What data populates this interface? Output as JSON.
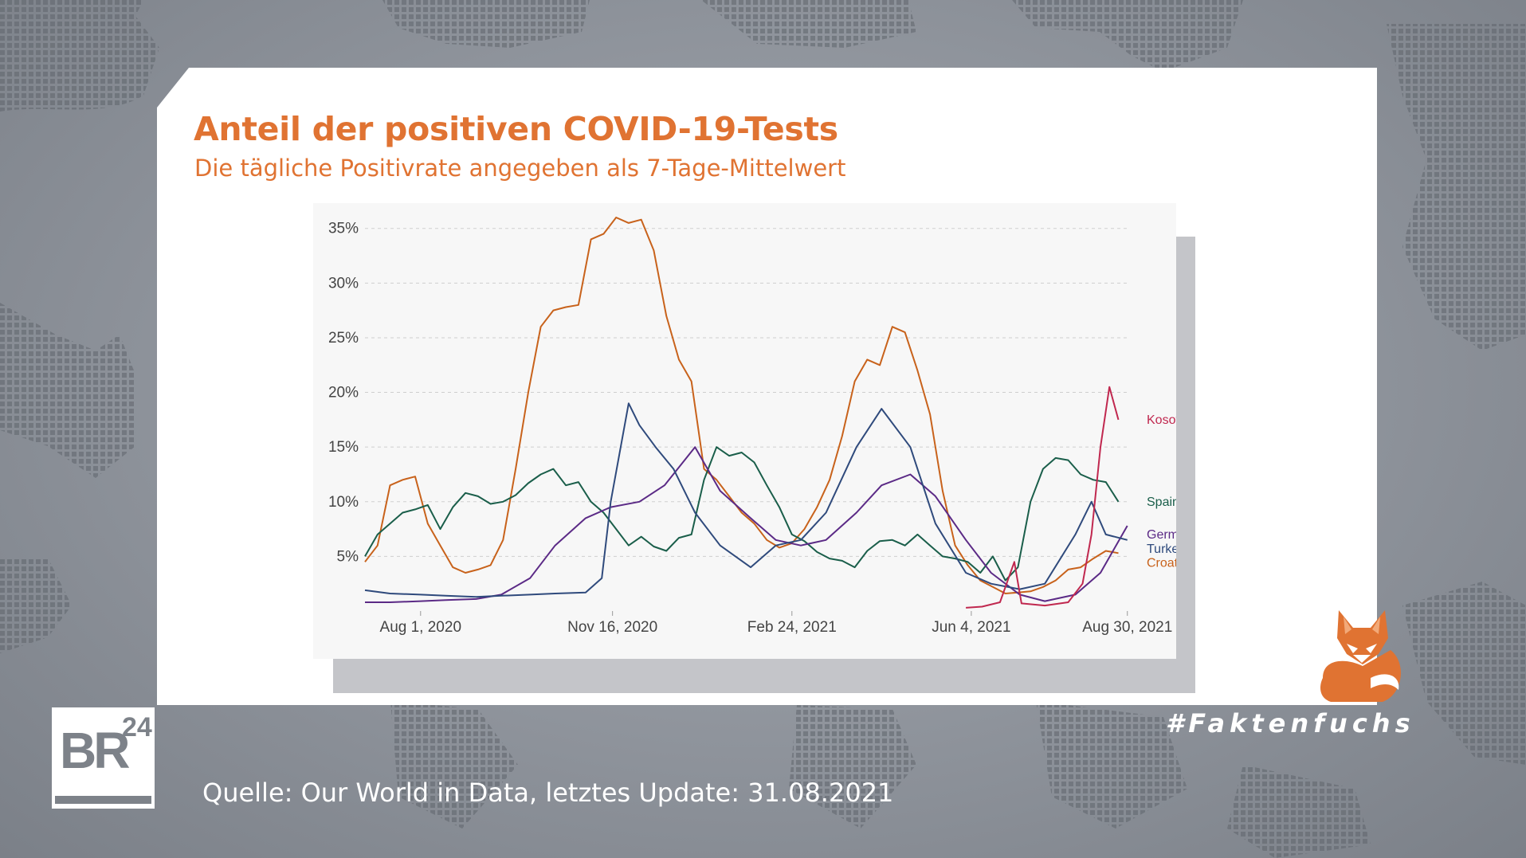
{
  "header": {
    "title": "Anteil der positiven COVID-19-Tests",
    "subtitle": "Die tägliche Positivrate angegeben als 7-Tage-Mittelwert"
  },
  "footer": {
    "source": "Quelle: Our World in Data, letztes Update: 31.08.2021",
    "hashtag": "#Faktenfuchs",
    "logo_text": "BR",
    "logo_sup": "24"
  },
  "colors": {
    "accent": "#e07332",
    "Kosovo": "#c0284f",
    "Spain": "#1a5e4a",
    "Germany": "#5b2a86",
    "Turkey": "#2f4a7c",
    "Croatia": "#c8621b"
  },
  "chart_data": {
    "type": "line",
    "y_ticks": [
      "35%",
      "30%",
      "25%",
      "20%",
      "15%",
      "10%",
      "5%"
    ],
    "y_tick_values": [
      35,
      30,
      25,
      20,
      15,
      10,
      5
    ],
    "x_ticks": [
      "Aug 1, 2020",
      "Nov 16, 2020",
      "Feb 24, 2021",
      "Jun 4, 2021",
      "Aug 30, 2021"
    ],
    "x_tick_values": [
      "2020-08-01",
      "2020-11-16",
      "2021-02-24",
      "2021-06-04",
      "2021-08-30"
    ],
    "xlim": [
      "2020-07-01",
      "2021-08-31"
    ],
    "ylim": [
      0,
      36
    ],
    "grid": "horizontal dashed",
    "legend": "right, inline labels at line ends",
    "series": [
      {
        "name": "Croatia",
        "color": "#c8621b",
        "points": [
          [
            "2020-07-01",
            4.5
          ],
          [
            "2020-07-08",
            6
          ],
          [
            "2020-07-15",
            11.5
          ],
          [
            "2020-07-22",
            12
          ],
          [
            "2020-07-29",
            12.3
          ],
          [
            "2020-08-05",
            8
          ],
          [
            "2020-08-12",
            6
          ],
          [
            "2020-08-19",
            4
          ],
          [
            "2020-08-26",
            3.5
          ],
          [
            "2020-09-02",
            3.8
          ],
          [
            "2020-09-09",
            4.2
          ],
          [
            "2020-09-16",
            6.5
          ],
          [
            "2020-09-23",
            13
          ],
          [
            "2020-09-30",
            20
          ],
          [
            "2020-10-07",
            26
          ],
          [
            "2020-10-14",
            27.5
          ],
          [
            "2020-10-21",
            27.8
          ],
          [
            "2020-10-28",
            28
          ],
          [
            "2020-11-04",
            34
          ],
          [
            "2020-11-11",
            34.5
          ],
          [
            "2020-11-18",
            36
          ],
          [
            "2020-11-25",
            35.5
          ],
          [
            "2020-12-02",
            35.8
          ],
          [
            "2020-12-09",
            33
          ],
          [
            "2020-12-16",
            27
          ],
          [
            "2020-12-23",
            23
          ],
          [
            "2020-12-30",
            21
          ],
          [
            "2021-01-06",
            13
          ],
          [
            "2021-01-13",
            12
          ],
          [
            "2021-01-20",
            10.5
          ],
          [
            "2021-01-27",
            9
          ],
          [
            "2021-02-03",
            8
          ],
          [
            "2021-02-10",
            6.5
          ],
          [
            "2021-02-17",
            5.8
          ],
          [
            "2021-02-24",
            6.2
          ],
          [
            "2021-03-03",
            7.5
          ],
          [
            "2021-03-10",
            9.5
          ],
          [
            "2021-03-17",
            12
          ],
          [
            "2021-03-24",
            16
          ],
          [
            "2021-03-31",
            21
          ],
          [
            "2021-04-07",
            23
          ],
          [
            "2021-04-14",
            22.5
          ],
          [
            "2021-04-21",
            26
          ],
          [
            "2021-04-28",
            25.5
          ],
          [
            "2021-05-05",
            22
          ],
          [
            "2021-05-12",
            18
          ],
          [
            "2021-05-19",
            11
          ],
          [
            "2021-05-26",
            6
          ],
          [
            "2021-06-02",
            4.2
          ],
          [
            "2021-06-09",
            2.8
          ],
          [
            "2021-06-16",
            2.2
          ],
          [
            "2021-06-23",
            1.6
          ],
          [
            "2021-06-30",
            1.7
          ],
          [
            "2021-07-07",
            1.8
          ],
          [
            "2021-07-14",
            2.2
          ],
          [
            "2021-07-21",
            2.8
          ],
          [
            "2021-07-28",
            3.8
          ],
          [
            "2021-08-04",
            4
          ],
          [
            "2021-08-11",
            4.8
          ],
          [
            "2021-08-18",
            5.5
          ],
          [
            "2021-08-25",
            5.3
          ]
        ]
      },
      {
        "name": "Spain",
        "color": "#1a5e4a",
        "points": [
          [
            "2020-07-01",
            5
          ],
          [
            "2020-07-08",
            7
          ],
          [
            "2020-07-15",
            8
          ],
          [
            "2020-07-22",
            9
          ],
          [
            "2020-07-29",
            9.3
          ],
          [
            "2020-08-05",
            9.7
          ],
          [
            "2020-08-12",
            7.5
          ],
          [
            "2020-08-19",
            9.5
          ],
          [
            "2020-08-26",
            10.8
          ],
          [
            "2020-09-02",
            10.5
          ],
          [
            "2020-09-09",
            9.8
          ],
          [
            "2020-09-16",
            10
          ],
          [
            "2020-09-23",
            10.6
          ],
          [
            "2020-09-30",
            11.7
          ],
          [
            "2020-10-07",
            12.5
          ],
          [
            "2020-10-14",
            13
          ],
          [
            "2020-10-21",
            11.5
          ],
          [
            "2020-10-28",
            11.8
          ],
          [
            "2020-11-04",
            10
          ],
          [
            "2020-11-11",
            9
          ],
          [
            "2020-11-18",
            7.5
          ],
          [
            "2020-11-25",
            6
          ],
          [
            "2020-12-02",
            6.8
          ],
          [
            "2020-12-09",
            5.9
          ],
          [
            "2020-12-16",
            5.5
          ],
          [
            "2020-12-23",
            6.7
          ],
          [
            "2020-12-30",
            7
          ],
          [
            "2021-01-06",
            12
          ],
          [
            "2021-01-13",
            15
          ],
          [
            "2021-01-20",
            14.2
          ],
          [
            "2021-01-27",
            14.5
          ],
          [
            "2021-02-03",
            13.6
          ],
          [
            "2021-02-10",
            11.5
          ],
          [
            "2021-02-17",
            9.5
          ],
          [
            "2021-02-24",
            7
          ],
          [
            "2021-03-03",
            6.4
          ],
          [
            "2021-03-10",
            5.4
          ],
          [
            "2021-03-17",
            4.8
          ],
          [
            "2021-03-24",
            4.6
          ],
          [
            "2021-03-31",
            4
          ],
          [
            "2021-04-07",
            5.5
          ],
          [
            "2021-04-14",
            6.4
          ],
          [
            "2021-04-21",
            6.5
          ],
          [
            "2021-04-28",
            6
          ],
          [
            "2021-05-05",
            7
          ],
          [
            "2021-05-12",
            6
          ],
          [
            "2021-05-19",
            5
          ],
          [
            "2021-05-26",
            4.8
          ],
          [
            "2021-06-02",
            4.5
          ],
          [
            "2021-06-09",
            3.5
          ],
          [
            "2021-06-16",
            5
          ],
          [
            "2021-06-23",
            2.8
          ],
          [
            "2021-06-30",
            4
          ],
          [
            "2021-07-07",
            10
          ],
          [
            "2021-07-14",
            13
          ],
          [
            "2021-07-21",
            14
          ],
          [
            "2021-07-28",
            13.8
          ],
          [
            "2021-08-04",
            12.5
          ],
          [
            "2021-08-11",
            12
          ],
          [
            "2021-08-18",
            11.8
          ],
          [
            "2021-08-25",
            10
          ]
        ]
      },
      {
        "name": "Germany",
        "color": "#5b2a86",
        "points": [
          [
            "2020-07-01",
            0.8
          ],
          [
            "2020-07-15",
            0.8
          ],
          [
            "2020-08-01",
            0.9
          ],
          [
            "2020-08-15",
            1
          ],
          [
            "2020-09-01",
            1.1
          ],
          [
            "2020-09-15",
            1.5
          ],
          [
            "2020-10-01",
            3
          ],
          [
            "2020-10-15",
            6
          ],
          [
            "2020-11-01",
            8.5
          ],
          [
            "2020-11-15",
            9.5
          ],
          [
            "2020-12-01",
            10
          ],
          [
            "2020-12-15",
            11.5
          ],
          [
            "2021-01-01",
            15
          ],
          [
            "2021-01-15",
            11
          ],
          [
            "2021-02-01",
            8.5
          ],
          [
            "2021-02-15",
            6.5
          ],
          [
            "2021-03-01",
            6
          ],
          [
            "2021-03-15",
            6.5
          ],
          [
            "2021-04-01",
            9
          ],
          [
            "2021-04-15",
            11.5
          ],
          [
            "2021-05-01",
            12.5
          ],
          [
            "2021-05-15",
            10.5
          ],
          [
            "2021-06-01",
            6.5
          ],
          [
            "2021-06-15",
            3.5
          ],
          [
            "2021-07-01",
            1.5
          ],
          [
            "2021-07-15",
            0.9
          ],
          [
            "2021-08-01",
            1.5
          ],
          [
            "2021-08-15",
            3.5
          ],
          [
            "2021-08-30",
            7.8
          ]
        ]
      },
      {
        "name": "Turkey",
        "color": "#2f4a7c",
        "points": [
          [
            "2020-07-01",
            1.9
          ],
          [
            "2020-07-15",
            1.6
          ],
          [
            "2020-08-01",
            1.5
          ],
          [
            "2020-08-15",
            1.4
          ],
          [
            "2020-09-01",
            1.3
          ],
          [
            "2020-09-15",
            1.4
          ],
          [
            "2020-10-01",
            1.5
          ],
          [
            "2020-10-15",
            1.6
          ],
          [
            "2020-11-01",
            1.7
          ],
          [
            "2020-11-10",
            3
          ],
          [
            "2020-11-15",
            10
          ],
          [
            "2020-11-25",
            19
          ],
          [
            "2020-12-01",
            17
          ],
          [
            "2020-12-10",
            15
          ],
          [
            "2020-12-20",
            13
          ],
          [
            "2021-01-01",
            9
          ],
          [
            "2021-01-15",
            6
          ],
          [
            "2021-02-01",
            4
          ],
          [
            "2021-02-15",
            6
          ],
          [
            "2021-03-01",
            6.5
          ],
          [
            "2021-03-15",
            9
          ],
          [
            "2021-04-01",
            15
          ],
          [
            "2021-04-15",
            18.5
          ],
          [
            "2021-05-01",
            15
          ],
          [
            "2021-05-15",
            8
          ],
          [
            "2021-06-01",
            3.5
          ],
          [
            "2021-06-15",
            2.5
          ],
          [
            "2021-07-01",
            2
          ],
          [
            "2021-07-15",
            2.5
          ],
          [
            "2021-08-01",
            7
          ],
          [
            "2021-08-10",
            10
          ],
          [
            "2021-08-18",
            7
          ],
          [
            "2021-08-30",
            6.5
          ]
        ]
      },
      {
        "name": "Kosovo",
        "color": "#c0284f",
        "points": [
          [
            "2021-06-01",
            0.3
          ],
          [
            "2021-06-10",
            0.4
          ],
          [
            "2021-06-20",
            0.8
          ],
          [
            "2021-06-28",
            4.5
          ],
          [
            "2021-07-02",
            0.7
          ],
          [
            "2021-07-15",
            0.5
          ],
          [
            "2021-07-28",
            0.8
          ],
          [
            "2021-08-05",
            2.5
          ],
          [
            "2021-08-10",
            7
          ],
          [
            "2021-08-15",
            15
          ],
          [
            "2021-08-20",
            20.5
          ],
          [
            "2021-08-25",
            17.5
          ]
        ]
      }
    ]
  }
}
